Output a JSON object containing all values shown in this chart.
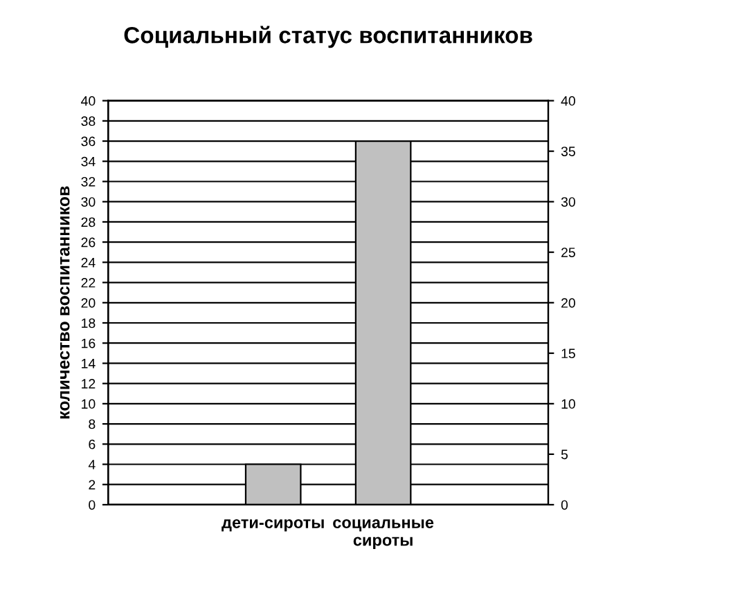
{
  "chart_data": {
    "type": "bar",
    "title": "Социальный статус воспитанников",
    "ylabel": "количество воспитанников",
    "categories": [
      null,
      "дети-сироты",
      "социальные сироты",
      null
    ],
    "values": [
      null,
      4,
      36,
      null
    ],
    "color": "#c0c0c0",
    "ylim": [
      0,
      40
    ],
    "yticks": [
      0,
      2,
      4,
      6,
      8,
      10,
      12,
      14,
      16,
      18,
      20,
      22,
      24,
      26,
      28,
      30,
      32,
      34,
      36,
      38,
      40
    ],
    "y2lim": [
      0,
      40
    ],
    "y2ticks": [
      0,
      5,
      10,
      15,
      20,
      25,
      30,
      35,
      40
    ],
    "grid": "y"
  }
}
